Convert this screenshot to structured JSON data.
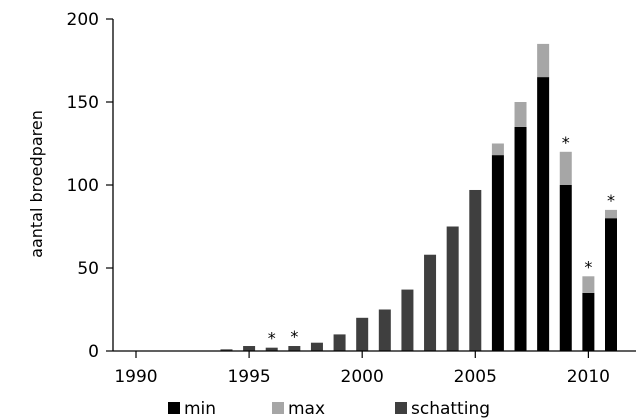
{
  "chart_data": {
    "type": "bar",
    "stacked": true,
    "title": "",
    "xlabel": "",
    "ylabel": "aantal broedparen",
    "ylim": [
      0,
      200
    ],
    "yticks": [
      0,
      50,
      100,
      150,
      200
    ],
    "xlim": [
      1990,
      2011
    ],
    "xticks": [
      1990,
      1995,
      2000,
      2005,
      2010
    ],
    "grid": false,
    "legend_position": "bottom",
    "categories": [
      1990,
      1991,
      1992,
      1993,
      1994,
      1995,
      1996,
      1997,
      1998,
      1999,
      2000,
      2001,
      2002,
      2003,
      2004,
      2005,
      2006,
      2007,
      2008,
      2009,
      2010,
      2011
    ],
    "series": [
      {
        "name": "min",
        "color": "#000000",
        "values": [
          0,
          0,
          0,
          0,
          0,
          0,
          0,
          0,
          0,
          0,
          0,
          0,
          0,
          0,
          0,
          0,
          118,
          135,
          165,
          100,
          35,
          80
        ]
      },
      {
        "name": "max",
        "color": "#a6a6a6",
        "values": [
          0,
          0,
          0,
          0,
          0,
          0,
          0,
          0,
          0,
          0,
          0,
          0,
          0,
          0,
          0,
          0,
          7,
          15,
          20,
          20,
          10,
          5
        ]
      },
      {
        "name": "schatting",
        "color": "#3f3f3f",
        "values": [
          0,
          0,
          0,
          0,
          1,
          3,
          2,
          3,
          5,
          10,
          20,
          25,
          37,
          58,
          75,
          97,
          0,
          0,
          0,
          0,
          0,
          0
        ]
      }
    ],
    "annotations": [
      {
        "text": "*",
        "x": 1996
      },
      {
        "text": "*",
        "x": 1997
      },
      {
        "text": "*",
        "x": 2009
      },
      {
        "text": "*",
        "x": 2010
      },
      {
        "text": "*",
        "x": 2011
      }
    ]
  }
}
